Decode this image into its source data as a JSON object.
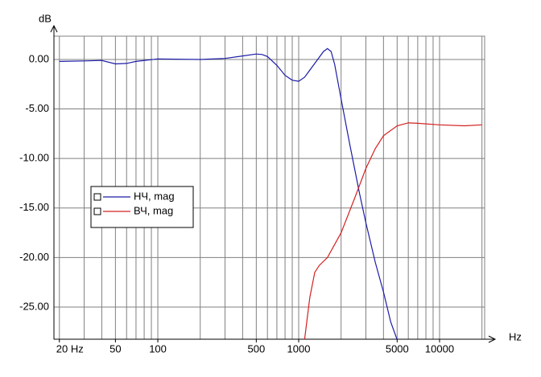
{
  "chart_data": {
    "type": "line",
    "xscale": "log",
    "grid": true,
    "xlabel": "Hz",
    "ylabel": "dB",
    "xlim": [
      18.3,
      20900
    ],
    "ylim": [
      -28.25,
      2.35
    ],
    "xticks": [
      {
        "value": 20,
        "label": "20 Hz"
      },
      50,
      100,
      500,
      1000,
      5000,
      10000
    ],
    "xgrid": [
      20,
      30,
      40,
      50,
      60,
      70,
      80,
      90,
      100,
      200,
      300,
      400,
      500,
      600,
      700,
      800,
      900,
      1000,
      2000,
      3000,
      4000,
      5000,
      6000,
      7000,
      8000,
      9000,
      10000,
      20000
    ],
    "yticks": [
      {
        "value": 0,
        "label": "0.00"
      },
      {
        "value": -5,
        "label": "-5.00"
      },
      {
        "value": -10,
        "label": "-10.00"
      },
      {
        "value": -15,
        "label": "-15.00"
      },
      {
        "value": -20,
        "label": "-20.00"
      },
      {
        "value": -25,
        "label": "-25.00"
      }
    ],
    "series": [
      {
        "name": "НЧ, mag",
        "color": "#1c1ca8",
        "x": [
          20,
          30,
          40,
          50,
          60,
          70,
          100,
          200,
          300,
          400,
          500,
          550,
          600,
          700,
          800,
          900,
          1000,
          1100,
          1300,
          1500,
          1600,
          1700,
          1800,
          2000,
          2300,
          2700,
          3000,
          3500,
          4000,
          4500,
          5000
        ],
        "values": [
          -0.2,
          -0.15,
          -0.1,
          -0.45,
          -0.4,
          -0.2,
          0.05,
          0.0,
          0.1,
          0.35,
          0.55,
          0.5,
          0.3,
          -0.6,
          -1.6,
          -2.1,
          -2.2,
          -1.8,
          -0.4,
          0.8,
          1.1,
          0.8,
          -0.5,
          -4.0,
          -8.5,
          -13.5,
          -16.5,
          -20.5,
          -23.5,
          -26.5,
          -28.3
        ]
      },
      {
        "name": "ВЧ, mag",
        "color": "#d42020",
        "x": [
          1100,
          1200,
          1300,
          1400,
          1600,
          2000,
          2500,
          3000,
          3500,
          4000,
          5000,
          6000,
          7000,
          10000,
          15000,
          20000
        ],
        "values": [
          -28.3,
          -24,
          -21.5,
          -20.8,
          -20,
          -17.5,
          -14,
          -11,
          -9,
          -7.7,
          -6.7,
          -6.4,
          -6.45,
          -6.6,
          -6.7,
          -6.6
        ]
      }
    ]
  }
}
